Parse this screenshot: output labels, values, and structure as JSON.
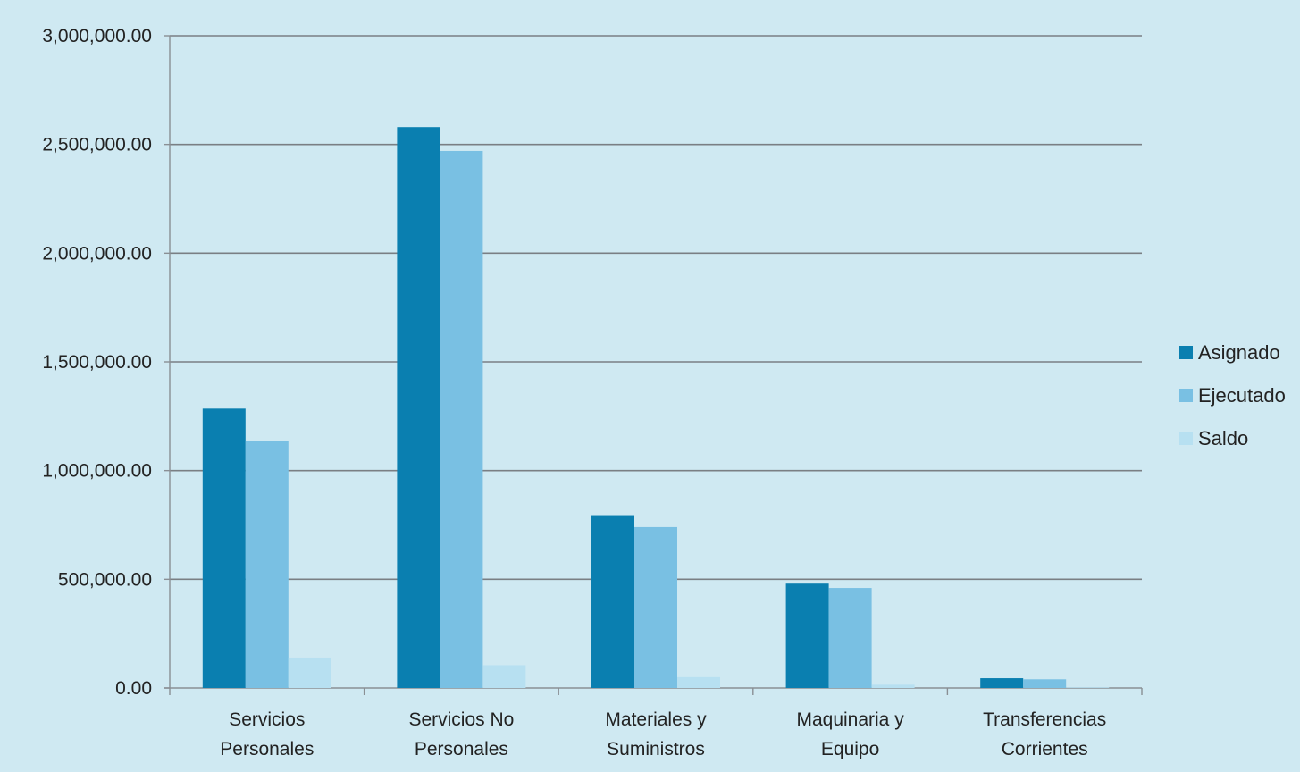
{
  "chart_data": {
    "type": "bar",
    "categories": [
      [
        "Servicios",
        "Personales"
      ],
      [
        "Servicios No",
        "Personales"
      ],
      [
        "Materiales y",
        "Suministros"
      ],
      [
        "Maquinaria y",
        "Equipo"
      ],
      [
        "Transferencias",
        "Corrientes"
      ]
    ],
    "series": [
      {
        "name": "Asignado",
        "values": [
          1285000,
          2580000,
          795000,
          480000,
          45000
        ],
        "color": "#0a7fb0"
      },
      {
        "name": "Ejecutado",
        "values": [
          1135000,
          2470000,
          740000,
          460000,
          40000
        ],
        "color": "#79c0e3"
      },
      {
        "name": "Saldo",
        "values": [
          140000,
          105000,
          50000,
          15000,
          3000
        ],
        "color": "#b7e0f1"
      }
    ],
    "ylim": [
      0,
      3000000
    ],
    "yticks": [
      0,
      500000,
      1000000,
      1500000,
      2000000,
      2500000,
      3000000
    ],
    "ytick_labels": [
      "0.00",
      "500,000.00",
      "1,000,000.00",
      "1,500,000.00",
      "2,000,000.00",
      "2,500,000.00",
      "3,000,000.00"
    ],
    "grid": true,
    "legend_position": "right",
    "title": "",
    "xlabel": "",
    "ylabel": ""
  },
  "colors": {
    "background": "#cfe9f2",
    "gridline": "#7a7f84",
    "axis": "#8a8f94",
    "text": "#222222"
  }
}
